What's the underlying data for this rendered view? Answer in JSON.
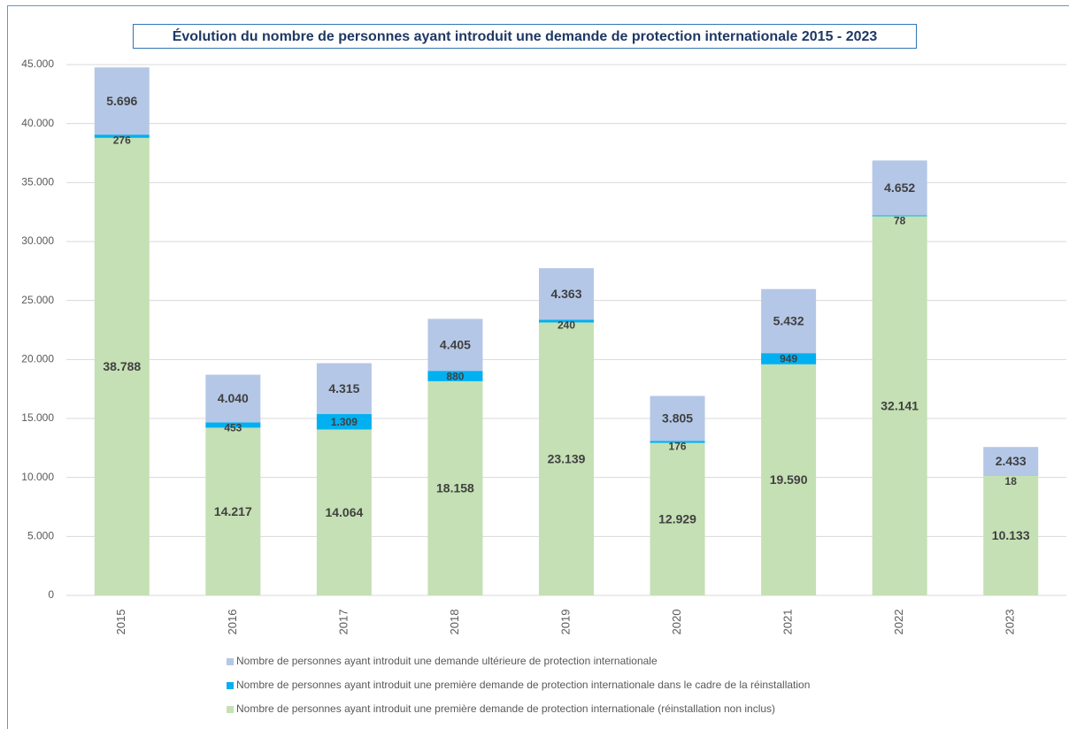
{
  "chart_data": {
    "type": "stacked_bar",
    "title": "Évolution du nombre de personnes ayant introduit une demande de protection internationale 2015 - 2023",
    "categories": [
      "2015",
      "2016",
      "2017",
      "2018",
      "2019",
      "2020",
      "2021",
      "2022",
      "2023"
    ],
    "series": [
      {
        "name": "Nombre de personnes ayant introduit une première demande de protection internationale (réinstallation non inclus)",
        "color": "#c5e0b4",
        "values": [
          38788,
          14217,
          14064,
          18158,
          23139,
          12929,
          19590,
          32141,
          10133
        ],
        "value_labels": [
          "38.788",
          "14.217",
          "14.064",
          "18.158",
          "23.139",
          "12.929",
          "19.590",
          "32.141",
          "10.133"
        ]
      },
      {
        "name": "Nombre de personnes ayant introduit une première demande de protection internationale dans le cadre de la réinstallation",
        "color": "#00b0f0",
        "values": [
          276,
          453,
          1309,
          880,
          240,
          176,
          949,
          78,
          18
        ],
        "value_labels": [
          "276",
          "453",
          "1.309",
          "880",
          "240",
          "176",
          "949",
          "78",
          "18"
        ]
      },
      {
        "name": "Nombre de personnes ayant introduit une demande ultérieure de protection internationale",
        "color": "#b4c7e7",
        "values": [
          5696,
          4040,
          4315,
          4405,
          4363,
          3805,
          5432,
          4652,
          2433
        ],
        "value_labels": [
          "5.696",
          "4.040",
          "4.315",
          "4.405",
          "4.363",
          "3.805",
          "5.432",
          "4.652",
          "2.433"
        ]
      }
    ],
    "ylim": [
      0,
      45000
    ],
    "yticks": [
      0,
      {
        "value": 5000,
        "label": "5.000"
      },
      {
        "value": 10000,
        "label": "10.000"
      },
      {
        "value": 15000,
        "label": "15.000"
      },
      {
        "value": 20000,
        "label": "20.000"
      },
      {
        "value": 25000,
        "label": "25.000"
      },
      {
        "value": 30000,
        "label": "30.000"
      },
      {
        "value": 35000,
        "label": "35.000"
      },
      {
        "value": 40000,
        "label": "40.000"
      },
      {
        "value": 45000,
        "label": "45.000"
      }
    ],
    "grid": true
  }
}
